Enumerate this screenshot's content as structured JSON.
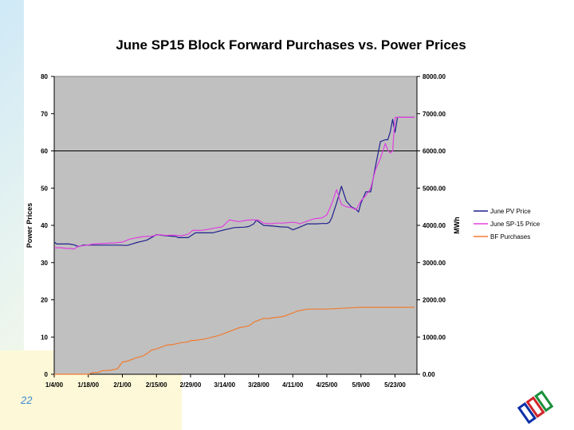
{
  "slide": {
    "number": "22"
  },
  "colors": {
    "plot_bg": "#c0c0c0",
    "pv": "#1f1f8f",
    "sp15": "#e040e0",
    "bf": "#f07b2e",
    "logo_blue": "#0b2fa8",
    "logo_red": "#d0242a",
    "logo_green": "#1a8f3a"
  },
  "chart_data": {
    "type": "line",
    "title": "June SP15 Block Forward Purchases vs. Power Prices",
    "ylabel": "Power Prices",
    "y2label": "MWh",
    "ylim": [
      0,
      80
    ],
    "y2lim": [
      0,
      8000
    ],
    "yticks": [
      "0",
      "10",
      "20",
      "30",
      "40",
      "50",
      "60",
      "70",
      "80"
    ],
    "y2ticks": [
      "0.00",
      "1000.00",
      "2000.00",
      "3000.00",
      "4000.00",
      "5000.00",
      "6000.00",
      "7000.00",
      "8000.00"
    ],
    "x_start": "2000-01-04",
    "x_end": "2000-06-01",
    "xticks": [
      {
        "label": "1/4/00",
        "day": 0
      },
      {
        "label": "1/18/00",
        "day": 14
      },
      {
        "label": "2/1/00",
        "day": 28
      },
      {
        "label": "2/15/00",
        "day": 42
      },
      {
        "label": "2/29/00",
        "day": 56
      },
      {
        "label": "3/14/00",
        "day": 70
      },
      {
        "label": "3/28/00",
        "day": 84
      },
      {
        "label": "4/11/00",
        "day": 98
      },
      {
        "label": "4/25/00",
        "day": 112
      },
      {
        "label": "5/9/00",
        "day": 126
      },
      {
        "label": "5/23/00",
        "day": 140
      }
    ],
    "grid": false,
    "legend": "right",
    "series": [
      {
        "name": "June PV Price",
        "axis": "left",
        "x": [
          0,
          1,
          6,
          8,
          10,
          12,
          16,
          22,
          26,
          30,
          32,
          34,
          36,
          38,
          42,
          46,
          50,
          51,
          55,
          58,
          60,
          65,
          70,
          74,
          78,
          80,
          82,
          83,
          86,
          90,
          93,
          96,
          98,
          100,
          104,
          108,
          110,
          112,
          113,
          114,
          116,
          118,
          120,
          122,
          124,
          125,
          126,
          128,
          130,
          132,
          134,
          136,
          137,
          138,
          139,
          140,
          141,
          142,
          143,
          144,
          146,
          148
        ],
        "y": [
          35.5,
          35,
          35,
          34.8,
          34.3,
          34.7,
          34.7,
          34.7,
          34.7,
          34.6,
          35,
          35.4,
          35.7,
          36,
          37.5,
          37.2,
          37,
          36.7,
          36.7,
          38,
          38,
          38,
          38.8,
          39.4,
          39.5,
          39.7,
          40.4,
          41.4,
          40,
          39.8,
          39.6,
          39.5,
          38.8,
          39.3,
          40.4,
          40.4,
          40.5,
          40.5,
          40.8,
          42,
          46,
          50.5,
          46.5,
          45,
          44.3,
          43.6,
          46,
          49,
          49,
          56,
          62.5,
          63,
          63,
          65,
          68.5,
          65,
          69,
          69,
          69,
          69,
          69,
          69
        ]
      },
      {
        "name": "June SP-15 Price",
        "axis": "left",
        "x": [
          0,
          3,
          5,
          7,
          8,
          10,
          13,
          16,
          19,
          22,
          25,
          28,
          31,
          34,
          37,
          40,
          43,
          46,
          49,
          52,
          55,
          57,
          60,
          63,
          66,
          69,
          72,
          74,
          76,
          79,
          82,
          84,
          86,
          89,
          91,
          94,
          97,
          99,
          101,
          104,
          107,
          110,
          112,
          114,
          116,
          118,
          120,
          122,
          124,
          126,
          128,
          130,
          132,
          134,
          136,
          137,
          138,
          139,
          140,
          142,
          144,
          146,
          148
        ],
        "y": [
          34,
          34,
          33.8,
          33.8,
          33.6,
          34.4,
          34.6,
          35,
          35.1,
          35.2,
          35.3,
          35.5,
          36.3,
          36.7,
          37,
          37.1,
          37.5,
          37.3,
          37.4,
          37.2,
          37.6,
          38.7,
          38.6,
          38.9,
          39.3,
          39.6,
          41.5,
          41.2,
          41,
          41.4,
          41.5,
          41.4,
          40.6,
          40.4,
          40.6,
          40.6,
          40.8,
          40.8,
          40.4,
          41.2,
          41.8,
          42,
          42.8,
          45.8,
          49.6,
          45.6,
          45,
          44.8,
          44.2,
          46.6,
          48,
          50,
          55,
          58,
          62,
          60.2,
          59.4,
          60,
          69,
          69,
          69,
          69,
          69
        ]
      },
      {
        "name": "BF Purchases",
        "axis": "right",
        "x": [
          0,
          14,
          16,
          18,
          20,
          22,
          24,
          26,
          28,
          30,
          32,
          34,
          36,
          38,
          40,
          42,
          46,
          49,
          52,
          55,
          56,
          59,
          62,
          65,
          68,
          70,
          74,
          76,
          80,
          82,
          84,
          86,
          88,
          94,
          96,
          98,
          100,
          104,
          110,
          112,
          120,
          126,
          148
        ],
        "y": [
          0,
          0,
          50,
          50,
          100,
          100,
          120,
          150,
          330,
          350,
          400,
          450,
          480,
          550,
          650,
          680,
          780,
          800,
          850,
          870,
          900,
          920,
          950,
          1000,
          1050,
          1100,
          1200,
          1250,
          1300,
          1400,
          1450,
          1500,
          1500,
          1550,
          1600,
          1650,
          1700,
          1750,
          1750,
          1750,
          1780,
          1800,
          1800
        ]
      }
    ]
  }
}
